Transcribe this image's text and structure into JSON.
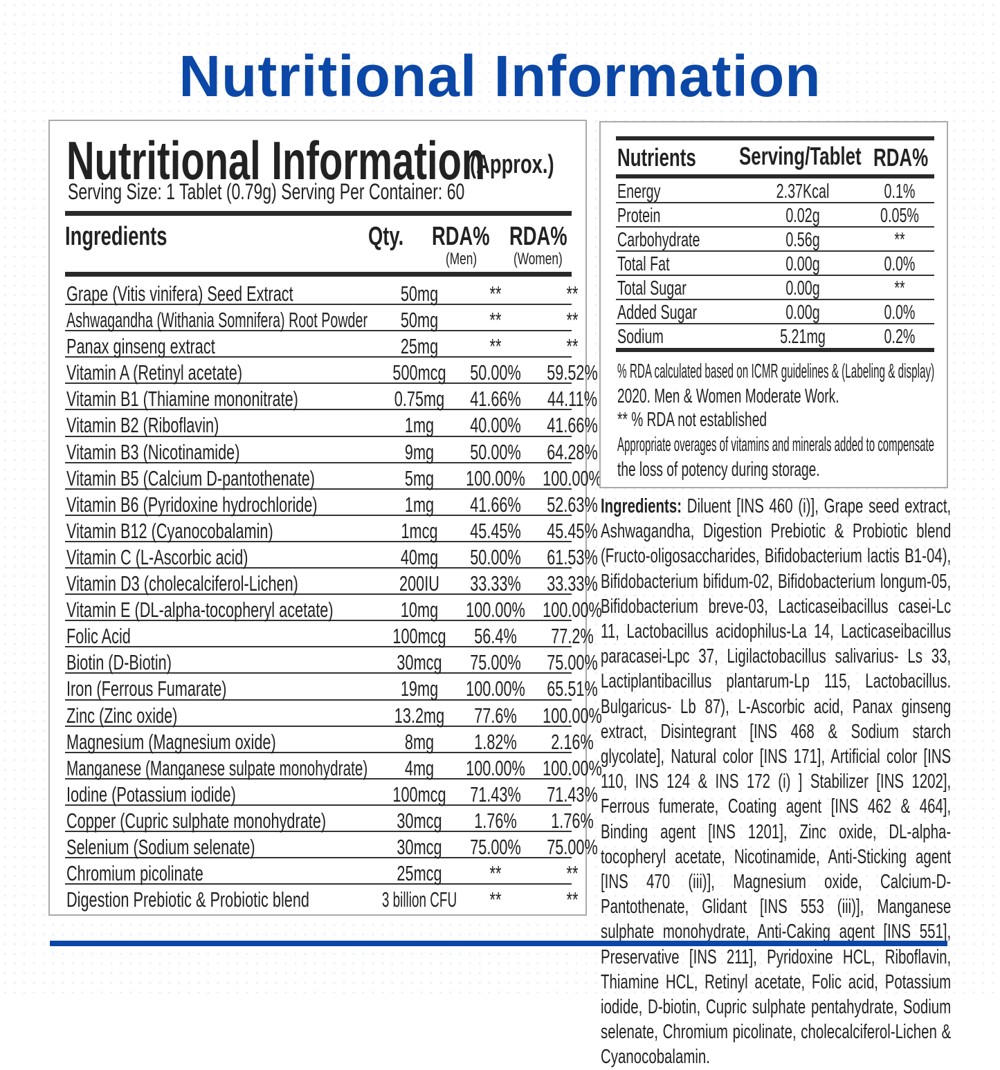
{
  "page_title": "Nutritional Information",
  "accent_color": "#0b47a6",
  "left_table": {
    "title": "Nutritional Information",
    "title_suffix": "(Approx.)",
    "serving": "Serving Size: 1 Tablet (0.79g) Serving Per Container: 60",
    "headers": {
      "ingredients": "Ingredients",
      "qty": "Qty.",
      "rda_men": "RDA%",
      "men": "(Men)",
      "rda_women": "RDA%",
      "women": "(Women)"
    },
    "rows": [
      [
        "Grape (Vitis vinifera) Seed Extract",
        "50mg",
        "**",
        "**"
      ],
      [
        "Ashwagandha (Withania Somnifera) Root Powder",
        "50mg",
        "**",
        "**"
      ],
      [
        "Panax ginseng extract",
        "25mg",
        "**",
        "**"
      ],
      [
        "Vitamin A (Retinyl acetate)",
        "500mcg",
        "50.00%",
        "59.52%"
      ],
      [
        "Vitamin B1 (Thiamine mononitrate)",
        "0.75mg",
        "41.66%",
        "44.11%"
      ],
      [
        "Vitamin B2 (Riboflavin)",
        "1mg",
        "40.00%",
        "41.66%"
      ],
      [
        "Vitamin B3 (Nicotinamide)",
        "9mg",
        "50.00%",
        "64.28%"
      ],
      [
        "Vitamin B5 (Calcium D-pantothenate)",
        "5mg",
        "100.00%",
        "100.00%"
      ],
      [
        "Vitamin B6 (Pyridoxine hydrochloride)",
        "1mg",
        "41.66%",
        "52.63%"
      ],
      [
        "Vitamin B12 (Cyanocobalamin)",
        "1mcg",
        "45.45%",
        "45.45%"
      ],
      [
        "Vitamin C (L-Ascorbic acid)",
        "40mg",
        "50.00%",
        "61.53%"
      ],
      [
        "Vitamin D3 (cholecalciferol-Lichen)",
        "200IU",
        "33.33%",
        "33.33%"
      ],
      [
        "Vitamin E (DL-alpha-tocopheryl acetate)",
        "10mg",
        "100.00%",
        "100.00%"
      ],
      [
        "Folic Acid",
        "100mcg",
        "56.4%",
        "77.2%"
      ],
      [
        "Biotin (D-Biotin)",
        "30mcg",
        "75.00%",
        "75.00%"
      ],
      [
        "Iron (Ferrous Fumarate)",
        "19mg",
        "100.00%",
        "65.51%"
      ],
      [
        "Zinc (Zinc oxide)",
        "13.2mg",
        "77.6%",
        "100.00%"
      ],
      [
        "Magnesium (Magnesium oxide)",
        "8mg",
        "1.82%",
        "2.16%"
      ],
      [
        "Manganese (Manganese sulpate monohydrate)",
        "4mg",
        "100.00%",
        "100.00%"
      ],
      [
        "Iodine (Potassium iodide)",
        "100mcg",
        "71.43%",
        "71.43%"
      ],
      [
        "Copper (Cupric sulphate monohydrate)",
        "30mcg",
        "1.76%",
        "1.76%"
      ],
      [
        "Selenium (Sodium selenate)",
        "30mcg",
        "75.00%",
        "75.00%"
      ],
      [
        "Chromium picolinate",
        "25mcg",
        "**",
        "**"
      ],
      [
        "Digestion Prebiotic & Probiotic blend",
        "3 billion CFU",
        "**",
        "**"
      ]
    ]
  },
  "right_table": {
    "headers": {
      "nutrients": "Nutrients",
      "serving": "Serving/Tablet",
      "rda": "RDA%"
    },
    "rows": [
      [
        "Energy",
        "2.37Kcal",
        "0.1%"
      ],
      [
        "Protein",
        "0.02g",
        "0.05%"
      ],
      [
        "Carbohydrate",
        "0.56g",
        "**"
      ],
      [
        "Total Fat",
        "0.00g",
        "0.0%"
      ],
      [
        "Total Sugar",
        "0.00g",
        "**"
      ],
      [
        "Added Sugar",
        "0.00g",
        "0.0%"
      ],
      [
        "Sodium",
        "5.21mg",
        "0.2%"
      ]
    ],
    "notes": [
      "% RDA calculated based on ICMR guidelines & (Labeling & display)",
      "2020. Men & Women Moderate Work.",
      "** % RDA not established",
      "Appropriate overages of vitamins and minerals added to compensate",
      "the loss of potency during storage."
    ]
  },
  "ingredients": {
    "label": "Ingredients:",
    "text": " Diluent [INS 460 (i)], Grape seed extract, Ashwagandha, Digestion Prebiotic & Probiotic blend (Fructo-oligosaccharides, Bifidobacterium lactis B1-04), Bifidobacterium bifidum-02, Bifidobacterium longum-05, Bifidobacterium breve-03, Lacticaseibacillus casei-Lc 11, Lactobacillus acidophilus-La 14, Lacticaseibacillus paracasei-Lpc 37, Ligilactobacillus salivarius- Ls 33, Lactiplantibacillus plantarum-Lp 115, Lactobacillus. Bulgaricus- Lb 87), L-Ascorbic acid, Panax ginseng extract, Disintegrant [INS 468 & Sodium starch glycolate], Natural color [INS 171], Artificial color [INS 110, INS 124 & INS 172 (i) ] Stabilizer [INS 1202], Ferrous fumerate, Coating agent [INS 462 & 464], Binding agent [INS 1201], Zinc oxide, DL-alpha-tocopheryl acetate, Nicotinamide, Anti-Sticking agent [INS 470 (iii)], Magnesium oxide, Calcium-D-Pantothenate, Glidant [INS 553 (iii)], Manganese sulphate monohydrate, Anti-Caking agent [INS 551], Preservative [INS 211], Pyridoxine HCL, Riboflavin, Thiamine HCL, Retinyl acetate, Folic acid, Potassium iodide, D-biotin, Cupric sulphate pentahydrate, Sodium selenate, Chromium picolinate, cholecalciferol-Lichen & Cyanocobalamin."
  }
}
